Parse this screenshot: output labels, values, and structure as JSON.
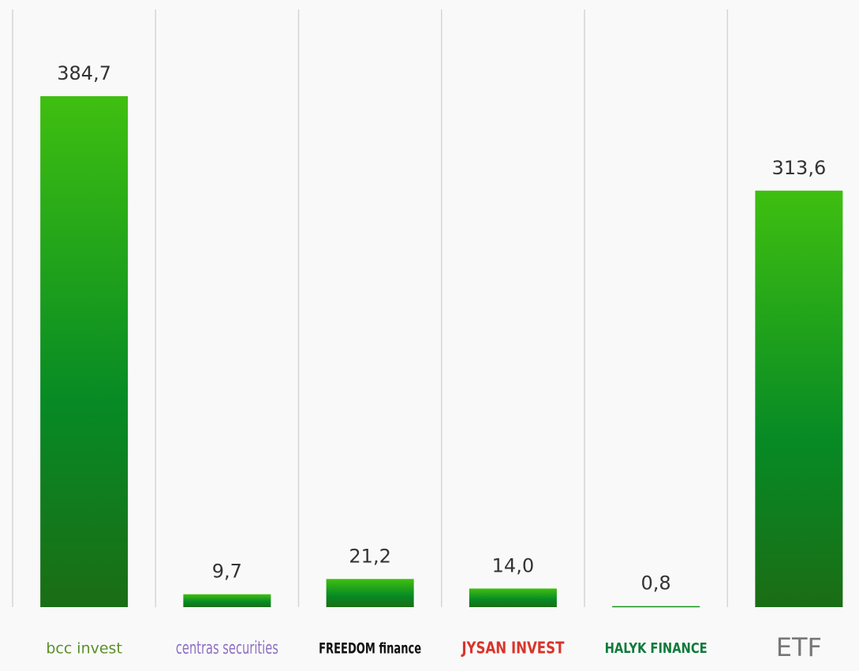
{
  "chart_data": {
    "type": "bar",
    "categories": [
      "bcc invest",
      "centras securities",
      "FREEDOM finance",
      "JYSAN INVEST",
      "HALYK FINANCE",
      "ETF"
    ],
    "values": [
      384.7,
      9.7,
      21.2,
      14.0,
      0.8,
      313.6
    ],
    "value_labels": [
      "384,7",
      "9,7",
      "21,2",
      "14,0",
      "0,8",
      "313,6"
    ],
    "colors": [
      "#3fbf10",
      "#078a25",
      "#1b6d15"
    ]
  }
}
